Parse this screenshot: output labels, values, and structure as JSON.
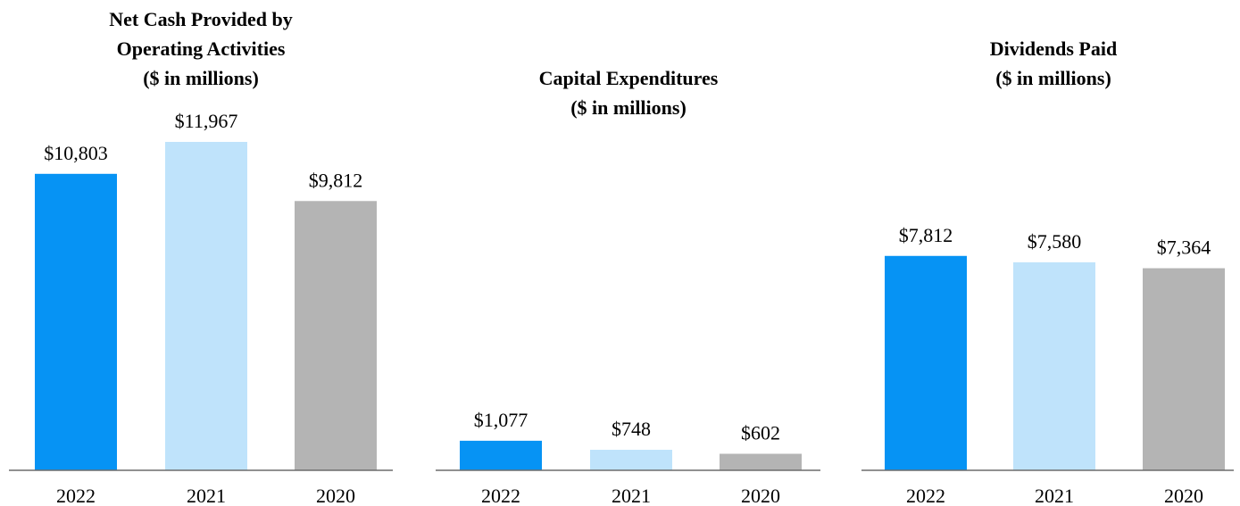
{
  "colors": {
    "2022": "#0693f4",
    "2021": "#bfe3fb",
    "2020": "#b4b4b4",
    "axis": "#6d6d6d"
  },
  "chart_data": [
    {
      "type": "bar",
      "title": [
        "Net Cash Provided by",
        "Operating Activities",
        "($ in millions)"
      ],
      "categories": [
        "2022",
        "2021",
        "2020"
      ],
      "values": [
        10803,
        11967,
        9812
      ],
      "value_labels": [
        "$10,803",
        "$11,967",
        "$9,812"
      ],
      "xlabel": "",
      "ylabel": "",
      "ylim": [
        0,
        11967
      ],
      "grid": false
    },
    {
      "type": "bar",
      "title": [
        "Capital Expenditures",
        "($ in millions)"
      ],
      "categories": [
        "2022",
        "2021",
        "2020"
      ],
      "values": [
        1077,
        748,
        602
      ],
      "value_labels": [
        "$1,077",
        "$748",
        "$602"
      ],
      "xlabel": "",
      "ylabel": "",
      "ylim": [
        0,
        11967
      ],
      "grid": false
    },
    {
      "type": "bar",
      "title": [
        "Dividends Paid",
        "($ in millions)"
      ],
      "categories": [
        "2022",
        "2021",
        "2020"
      ],
      "values": [
        7812,
        7580,
        7364
      ],
      "value_labels": [
        "$7,812",
        "$7,580",
        "$7,364"
      ],
      "xlabel": "",
      "ylabel": "",
      "ylim": [
        0,
        11967
      ],
      "grid": false
    }
  ]
}
